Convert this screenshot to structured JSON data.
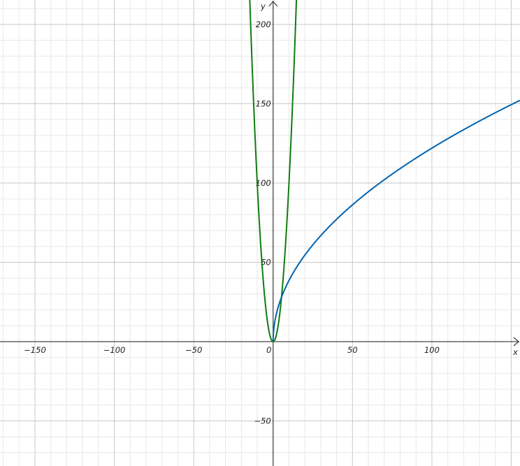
{
  "chart_data": {
    "type": "line",
    "title": "",
    "xlabel": "x",
    "ylabel": "y",
    "xlim": [
      -172,
      155.5
    ],
    "ylim": [
      -78.4,
      215.4
    ],
    "grid": true,
    "major_step": 50,
    "minor_step": 10,
    "x_ticks": [
      "−150",
      "−100",
      "−50",
      "0",
      "50",
      "100"
    ],
    "x_tick_values": [
      -150,
      -100,
      -50,
      0,
      50,
      100
    ],
    "y_ticks": [
      "200",
      "150",
      "100",
      "50",
      "−50"
    ],
    "y_tick_values": [
      200,
      150,
      100,
      50,
      -50
    ],
    "series": [
      {
        "expression_form": "a*x^2",
        "a": 1,
        "color": "#107C10"
      },
      {
        "expression_form": "k*sqrt(x)",
        "k": 12.2,
        "color": "#0063B1"
      }
    ]
  }
}
